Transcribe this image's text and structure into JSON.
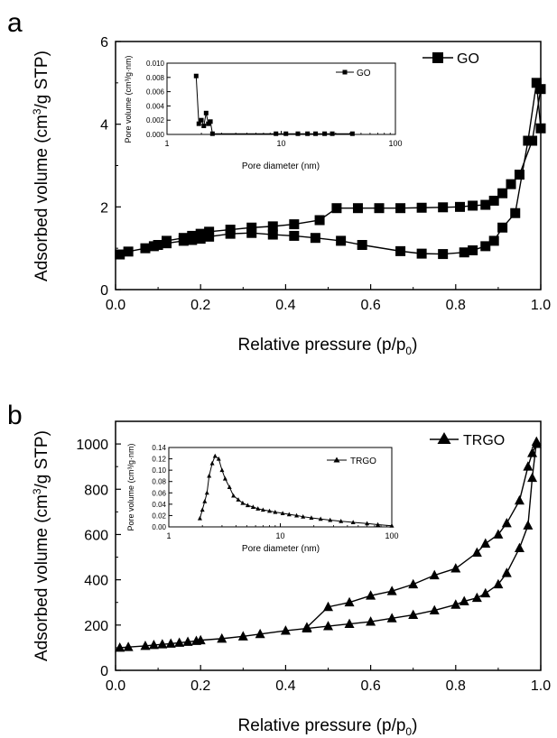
{
  "chart_data": [
    {
      "panel_label": "a",
      "type": "line",
      "xlabel_main": "Relative pressure (p/p",
      "xlabel_sub": "0",
      "xlabel_tail": ")",
      "ylabel_main": "Adsorbed volume (cm",
      "ylabel_sup": "3",
      "ylabel_tail": "/g STP)",
      "xlim": [
        0,
        1
      ],
      "ylim": [
        0,
        6
      ],
      "xticks": [
        "0.0",
        "0.2",
        "0.4",
        "0.6",
        "0.8",
        "1.0"
      ],
      "yticks": [
        "0",
        "2",
        "4",
        "6"
      ],
      "legend": "GO",
      "marker": "square",
      "series": [
        {
          "name": "GO",
          "branch": "adsorption",
          "x": [
            0.01,
            0.03,
            0.07,
            0.09,
            0.1,
            0.12,
            0.16,
            0.18,
            0.2,
            0.22,
            0.27,
            0.32,
            0.37,
            0.42,
            0.47,
            0.53,
            0.58,
            0.67,
            0.72,
            0.77,
            0.82,
            0.84,
            0.87,
            0.89,
            0.91,
            0.94,
            0.97,
            0.99,
            1.0
          ],
          "y": [
            0.85,
            0.92,
            1.0,
            1.05,
            1.08,
            1.12,
            1.18,
            1.2,
            1.23,
            1.28,
            1.35,
            1.37,
            1.33,
            1.3,
            1.25,
            1.18,
            1.08,
            0.93,
            0.87,
            0.86,
            0.9,
            0.95,
            1.05,
            1.18,
            1.5,
            1.85,
            3.6,
            5.0,
            3.9
          ]
        },
        {
          "name": "GO",
          "branch": "desorption",
          "x": [
            1.0,
            0.98,
            0.95,
            0.93,
            0.91,
            0.89,
            0.87,
            0.84,
            0.81,
            0.77,
            0.72,
            0.67,
            0.62,
            0.57,
            0.52,
            0.48,
            0.42,
            0.37,
            0.32,
            0.27,
            0.22,
            0.2,
            0.18,
            0.16,
            0.12
          ],
          "y": [
            4.85,
            3.6,
            2.78,
            2.55,
            2.33,
            2.15,
            2.05,
            2.03,
            2.0,
            1.99,
            1.98,
            1.97,
            1.97,
            1.97,
            1.97,
            1.68,
            1.58,
            1.53,
            1.5,
            1.45,
            1.4,
            1.35,
            1.3,
            1.25,
            1.18
          ]
        }
      ],
      "inset": {
        "type": "line",
        "xlabel": "Pore diameter (nm)",
        "ylabel": "Pore volume (cm³/g·nm)",
        "xscale": "log",
        "xlim": [
          1,
          100
        ],
        "ylim": [
          0,
          0.01
        ],
        "xticks": [
          "1",
          "10",
          "100"
        ],
        "yticks": [
          "0.000",
          "0.002",
          "0.004",
          "0.006",
          "0.008",
          "0.010"
        ],
        "legend": "GO",
        "marker": "square",
        "x": [
          1.8,
          1.9,
          2.0,
          2.1,
          2.2,
          2.3,
          2.4,
          2.5,
          9,
          11,
          14,
          17,
          20,
          24,
          28,
          42
        ],
        "y": [
          0.0082,
          0.0015,
          0.002,
          0.0012,
          0.003,
          0.0015,
          0.0018,
          0.0001,
          0.0001,
          0.0001,
          0.0001,
          0.0001,
          0.0001,
          0.0001,
          0.0001,
          0.0001
        ]
      }
    },
    {
      "panel_label": "b",
      "type": "line",
      "xlabel_main": "Relative pressure (p/p",
      "xlabel_sub": "0",
      "xlabel_tail": ")",
      "ylabel_main": "Adsorbed volume (cm",
      "ylabel_sup": "3",
      "ylabel_tail": "/g STP)",
      "xlim": [
        0,
        1
      ],
      "ylim": [
        0,
        1100
      ],
      "xticks": [
        "0.0",
        "0.2",
        "0.4",
        "0.6",
        "0.8",
        "1.0"
      ],
      "yticks": [
        "0",
        "200",
        "400",
        "600",
        "800",
        "1000"
      ],
      "legend": "TRGO",
      "marker": "triangle",
      "series": [
        {
          "name": "TRGO",
          "branch": "adsorption",
          "x": [
            0.01,
            0.03,
            0.07,
            0.09,
            0.11,
            0.13,
            0.15,
            0.17,
            0.19,
            0.2,
            0.25,
            0.3,
            0.34,
            0.4,
            0.45,
            0.5,
            0.55,
            0.6,
            0.65,
            0.7,
            0.75,
            0.8,
            0.82,
            0.85,
            0.87,
            0.9,
            0.92,
            0.95,
            0.97,
            0.98,
            0.99
          ],
          "y": [
            100,
            103,
            108,
            112,
            115,
            118,
            122,
            126,
            130,
            133,
            140,
            150,
            160,
            175,
            185,
            195,
            205,
            215,
            230,
            245,
            265,
            290,
            305,
            320,
            340,
            380,
            430,
            540,
            640,
            850,
            1010
          ]
        },
        {
          "name": "TRGO",
          "branch": "desorption",
          "x": [
            0.99,
            0.98,
            0.97,
            0.95,
            0.92,
            0.9,
            0.87,
            0.85,
            0.8,
            0.75,
            0.7,
            0.65,
            0.6,
            0.55,
            0.5,
            0.45
          ],
          "y": [
            1000,
            960,
            900,
            750,
            650,
            600,
            560,
            520,
            450,
            420,
            380,
            350,
            330,
            300,
            280,
            190
          ]
        }
      ],
      "inset": {
        "type": "line",
        "xlabel": "Pore diameter (nm)",
        "ylabel": "Pore volume (cm³/g·nm)",
        "xscale": "log",
        "xlim": [
          1,
          100
        ],
        "ylim": [
          0,
          0.14
        ],
        "xticks": [
          "1",
          "10",
          "100"
        ],
        "yticks": [
          "0.00",
          "0.02",
          "0.04",
          "0.06",
          "0.08",
          "0.10",
          "0.12",
          "0.14"
        ],
        "legend": "TRGO",
        "marker": "triangle",
        "x": [
          1.9,
          2.0,
          2.1,
          2.2,
          2.3,
          2.45,
          2.6,
          2.8,
          3.0,
          3.2,
          3.5,
          3.8,
          4.2,
          4.6,
          5.1,
          5.7,
          6.3,
          7.0,
          8.0,
          9.0,
          10.5,
          12,
          14,
          16,
          19,
          23,
          28,
          35,
          45,
          60,
          75,
          100
        ],
        "y": [
          0.015,
          0.03,
          0.045,
          0.06,
          0.09,
          0.112,
          0.125,
          0.12,
          0.1,
          0.085,
          0.07,
          0.055,
          0.048,
          0.042,
          0.038,
          0.035,
          0.032,
          0.03,
          0.028,
          0.026,
          0.024,
          0.022,
          0.02,
          0.018,
          0.016,
          0.014,
          0.012,
          0.01,
          0.008,
          0.006,
          0.004,
          0.002
        ]
      }
    }
  ]
}
